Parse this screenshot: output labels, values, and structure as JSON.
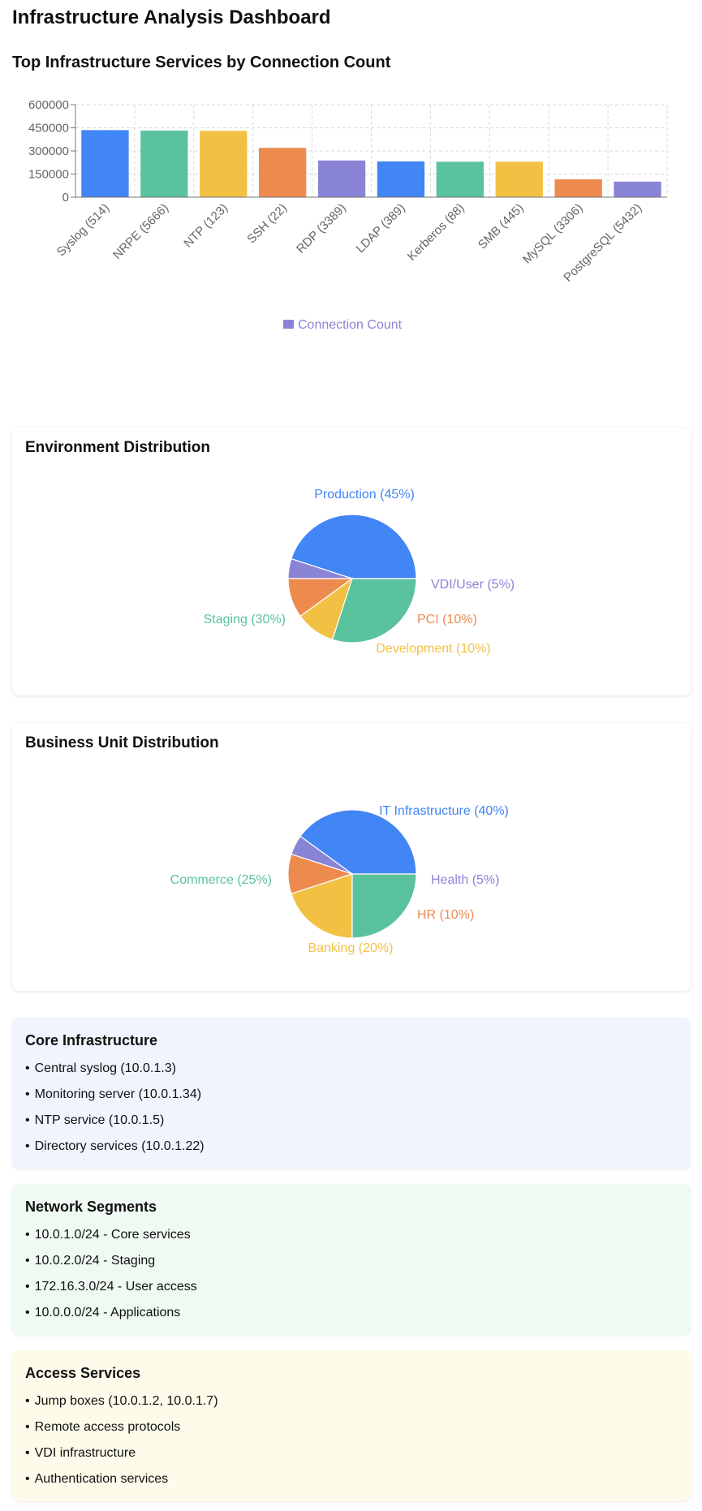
{
  "page": {
    "title": "Infrastructure Analysis Dashboard"
  },
  "colors": {
    "blue": "#4285f4",
    "green": "#5bc29e",
    "yellow": "#f2c144",
    "orange": "#ed8b4f",
    "purple": "#8a84d6"
  },
  "chart_data": [
    {
      "type": "bar",
      "title": "Top Infrastructure Services by Connection Count",
      "categories": [
        "Syslog (514)",
        "NRPE (5666)",
        "NTP (123)",
        "SSH (22)",
        "RDP (3389)",
        "LDAP (389)",
        "Kerberos (88)",
        "SMB (445)",
        "MySQL (3306)",
        "PostgreSQL (5432)"
      ],
      "series": [
        {
          "name": "Connection Count",
          "values": [
            435000,
            432000,
            430000,
            320000,
            238000,
            232000,
            230000,
            230000,
            116000,
            101000
          ]
        }
      ],
      "yticks": [
        "600000",
        "450000",
        "300000",
        "150000",
        "0"
      ],
      "ylim": [
        0,
        600000
      ],
      "grid": true,
      "legend": "bottom-center",
      "bar_colors": [
        "#4285f4",
        "#5bc29e",
        "#f2c144",
        "#ed8b4f",
        "#8a84d6",
        "#4285f4",
        "#5bc29e",
        "#f2c144",
        "#ed8b4f",
        "#8a84d6"
      ]
    },
    {
      "type": "pie",
      "title": "Environment Distribution",
      "slices": [
        {
          "label": "Production (45%)",
          "value": 45,
          "color": "#4285f4"
        },
        {
          "label": "VDI/User (5%)",
          "value": 5,
          "color": "#8a84d6"
        },
        {
          "label": "PCI (10%)",
          "value": 10,
          "color": "#ed8b4f"
        },
        {
          "label": "Development (10%)",
          "value": 10,
          "color": "#f2c144"
        },
        {
          "label": "Staging (30%)",
          "value": 30,
          "color": "#5bc29e"
        }
      ]
    },
    {
      "type": "pie",
      "title": "Business Unit Distribution",
      "slices": [
        {
          "label": "IT Infrastructure (40%)",
          "value": 40,
          "color": "#4285f4"
        },
        {
          "label": "Health (5%)",
          "value": 5,
          "color": "#8a84d6"
        },
        {
          "label": "HR (10%)",
          "value": 10,
          "color": "#ed8b4f"
        },
        {
          "label": "Banking (20%)",
          "value": 20,
          "color": "#f2c144"
        },
        {
          "label": "Commerce (25%)",
          "value": 25,
          "color": "#5bc29e"
        }
      ]
    }
  ],
  "sections": [
    {
      "title": "Core Infrastructure",
      "items": [
        "Central syslog (10.0.1.3)",
        "Monitoring server (10.0.1.34)",
        "NTP service (10.0.1.5)",
        "Directory services (10.0.1.22)"
      ],
      "background": "#eff4ff"
    },
    {
      "title": "Network Segments",
      "items": [
        "10.0.1.0/24 - Core services",
        "10.0.2.0/24 - Staging",
        "172.16.3.0/24 - User access",
        "10.0.0.0/24 - Applications"
      ],
      "background": "#eefaf2"
    },
    {
      "title": "Access Services",
      "items": [
        "Jump boxes (10.0.1.2, 10.0.1.7)",
        "Remote access protocols",
        "VDI infrastructure",
        "Authentication services"
      ],
      "background": "#fdfbe9"
    }
  ]
}
